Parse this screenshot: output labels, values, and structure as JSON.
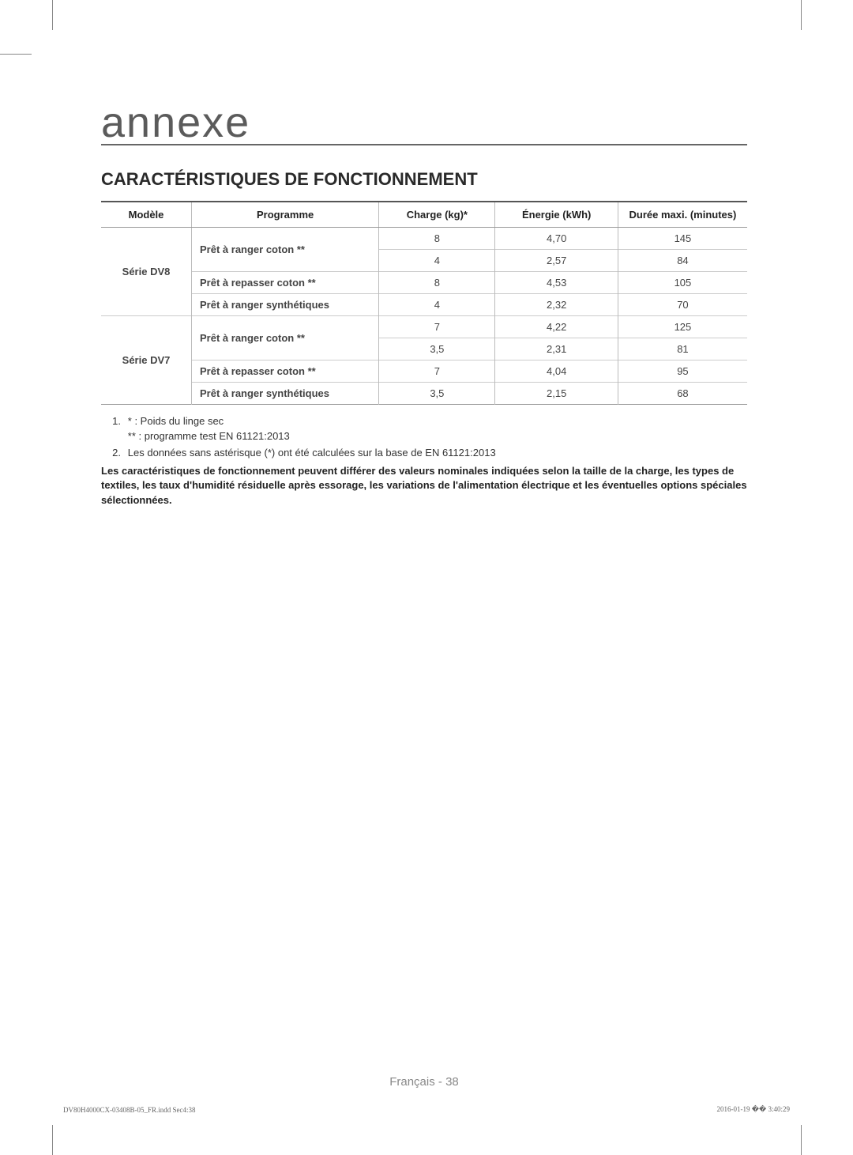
{
  "page_title": "annexe",
  "section_title": "CARACTÉRISTIQUES DE FONCTIONNEMENT",
  "table": {
    "columns": {
      "model": "Modèle",
      "program": "Programme",
      "charge": "Charge (kg)*",
      "energy": "Énergie (kWh)",
      "duration": "Durée maxi. (minutes)"
    },
    "groups": [
      {
        "model": "Série DV8",
        "rows": [
          {
            "program": "Prêt à ranger coton **",
            "prog_rowspan": 2,
            "charge": "8",
            "energy": "4,70",
            "duration": "145"
          },
          {
            "program": null,
            "charge": "4",
            "energy": "2,57",
            "duration": "84"
          },
          {
            "program": "Prêt à repasser coton **",
            "prog_rowspan": 1,
            "charge": "8",
            "energy": "4,53",
            "duration": "105"
          },
          {
            "program": "Prêt à ranger synthétiques",
            "prog_rowspan": 1,
            "charge": "4",
            "energy": "2,32",
            "duration": "70"
          }
        ]
      },
      {
        "model": "Série DV7",
        "rows": [
          {
            "program": "Prêt à ranger coton **",
            "prog_rowspan": 2,
            "charge": "7",
            "energy": "4,22",
            "duration": "125"
          },
          {
            "program": null,
            "charge": "3,5",
            "energy": "2,31",
            "duration": "81"
          },
          {
            "program": "Prêt à repasser coton **",
            "prog_rowspan": 1,
            "charge": "7",
            "energy": "4,04",
            "duration": "95"
          },
          {
            "program": "Prêt à ranger synthétiques",
            "prog_rowspan": 1,
            "charge": "3,5",
            "energy": "2,15",
            "duration": "68"
          }
        ]
      }
    ]
  },
  "notes": {
    "item1_line1": "* : Poids du linge sec",
    "item1_line2": "** : programme test EN 61121:2013",
    "item2": "Les données sans astérisque (*) ont été calculées sur la base de EN 61121:2013",
    "bold": "Les caractéristiques de fonctionnement peuvent différer des valeurs nominales indiquées selon la taille de la charge, les types de textiles, les taux d'humidité résiduelle après essorage, les variations de l'alimentation électrique et les éventuelles options spéciales sélectionnées."
  },
  "footer": {
    "lang": "Français - 38",
    "print_left": "DV80H4000CX-03408B-05_FR.indd   Sec4:38",
    "print_right": "2016-01-19   �� 3:40:29"
  },
  "colors": {
    "title_gray": "#5b5b5b",
    "rule_gray": "#666666",
    "text": "#222222",
    "muted": "#888888"
  }
}
